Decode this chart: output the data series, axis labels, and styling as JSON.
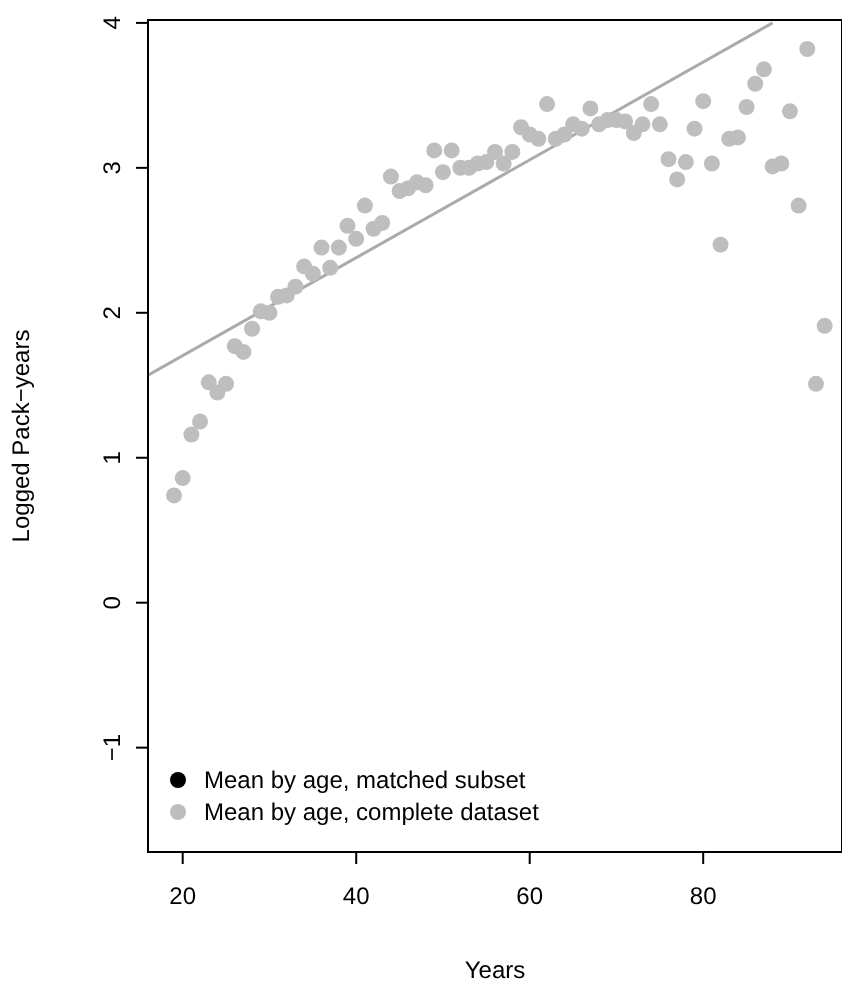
{
  "chart_data": {
    "type": "scatter",
    "xlabel": "Years",
    "ylabel": "Logged Pack−years",
    "xlim": [
      16,
      96
    ],
    "ylim": [
      -1.72,
      4.02
    ],
    "xticks": [
      20,
      40,
      60,
      80
    ],
    "yticks": [
      -1,
      0,
      1,
      2,
      3,
      4
    ],
    "grid": false,
    "legend": "bottom left",
    "series": [
      {
        "name": "Mean by age, matched subset",
        "color": "#000000",
        "marker": "circle"
      },
      {
        "name": "Mean by age, complete dataset",
        "color": "#bebebe",
        "marker": "circle",
        "x": [
          19,
          20,
          21,
          22,
          23,
          24,
          25,
          26,
          27,
          28,
          29,
          30,
          31,
          32,
          33,
          34,
          35,
          36,
          37,
          38,
          39,
          40,
          41,
          42,
          43,
          44,
          45,
          46,
          47,
          48,
          49,
          50,
          51,
          52,
          53,
          54,
          55,
          56,
          57,
          58,
          59,
          60,
          61,
          62,
          63,
          64,
          65,
          66,
          67,
          68,
          69,
          70,
          71,
          72,
          73,
          74,
          75,
          76,
          77,
          78,
          79,
          80,
          81,
          82,
          83,
          84,
          85,
          86,
          87,
          88,
          89,
          90,
          91,
          92,
          93,
          94
        ],
        "values": [
          0.74,
          0.86,
          1.16,
          1.25,
          1.52,
          1.45,
          1.51,
          1.77,
          1.73,
          1.89,
          2.01,
          2.0,
          2.11,
          2.12,
          2.18,
          2.32,
          2.27,
          2.45,
          2.31,
          2.45,
          2.6,
          2.51,
          2.74,
          2.58,
          2.62,
          2.94,
          2.84,
          2.86,
          2.9,
          2.88,
          3.12,
          2.97,
          3.12,
          3.0,
          3.0,
          3.03,
          3.04,
          3.11,
          3.03,
          3.11,
          3.28,
          3.23,
          3.2,
          3.44,
          3.2,
          3.23,
          3.3,
          3.27,
          3.41,
          3.3,
          3.33,
          3.33,
          3.32,
          3.24,
          3.3,
          3.44,
          3.3,
          3.06,
          2.92,
          3.04,
          3.27,
          3.46,
          3.03,
          2.47,
          3.2,
          3.21,
          3.42,
          3.58,
          3.68,
          3.01,
          3.03,
          3.39,
          2.74,
          3.82,
          1.51,
          1.91
        ]
      },
      {
        "type": "line",
        "color": "#aaaaaa",
        "marker": "none",
        "x": [
          16,
          88
        ],
        "values": [
          1.57,
          4.0
        ]
      }
    ]
  }
}
